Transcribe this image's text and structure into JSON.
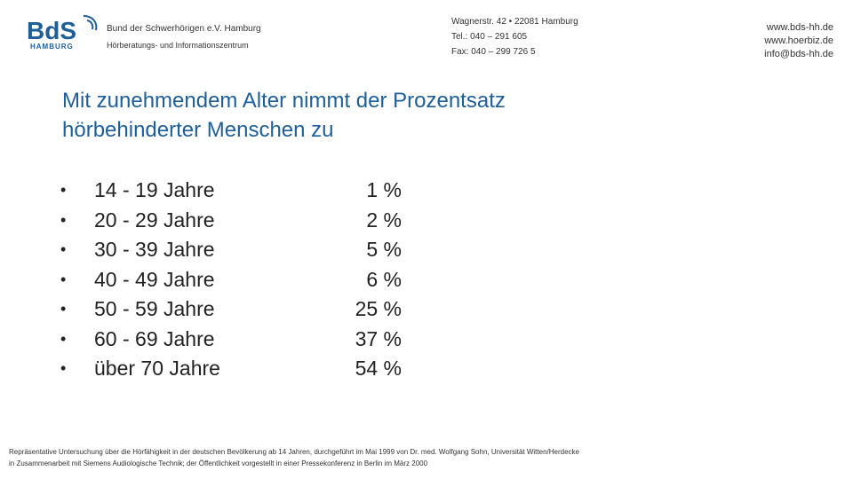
{
  "header": {
    "logo": {
      "text": "BdS",
      "subtext": "HAMBURG",
      "color": "#1f5f99"
    },
    "org_name": "Bund der Schwerhörigen e.V. Hamburg",
    "org_sub": "Hörberatungs- und Informationszentrum",
    "address": [
      "Wagnerstr. 42 • 22081 Hamburg",
      "Tel.: 040 – 291 605",
      "Fax: 040 – 299 726 5"
    ],
    "links": [
      "www.bds-hh.de",
      "www.hoerbiz.de",
      "info@bds-hh.de"
    ]
  },
  "main": {
    "title_lines": [
      "Mit zunehmendem Alter nimmt der Prozentsatz",
      "hörbehinderter Menschen zu"
    ],
    "bullet_symbol": "•",
    "rows": [
      {
        "age": "14 - 19 Jahre",
        "pct": "1 %"
      },
      {
        "age": "20 - 29 Jahre",
        "pct": "2 %"
      },
      {
        "age": "30 - 39 Jahre",
        "pct": "5 %"
      },
      {
        "age": "40 - 49 Jahre",
        "pct": "6 %"
      },
      {
        "age": "50 - 59 Jahre",
        "pct": "25 %"
      },
      {
        "age": "60 - 69 Jahre",
        "pct": "37 %"
      },
      {
        "age": "über 70 Jahre",
        "pct": "54 %"
      }
    ]
  },
  "footer": {
    "lines": [
      "Repräsentative Untersuchung über die Hörfähigkeit in der deutschen Bevölkerung ab 14 Jahren, durchgeführt im Mai 1999 von Dr. med. Wolfgang Sohn, Universität Witten/Herdecke",
      "in Zusammenarbeit mit Siemens Audiologische Technik; der Öffentlichkeit vorgestellt in einer Pressekonferenz in Berlin im März 2000"
    ]
  },
  "colors": {
    "accent": "#1f5f99",
    "text": "#222222"
  }
}
